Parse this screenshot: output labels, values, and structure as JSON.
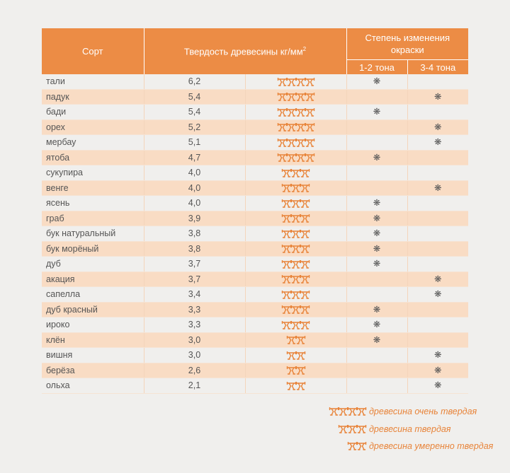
{
  "header": {
    "sort": "Сорт",
    "hardness": "Твердость древесины кг/мм",
    "hardness_sup": "2",
    "color_change": "Степень изменения окраски",
    "tone_1_2": "1-2 тона",
    "tone_3_4": "3-4 тона"
  },
  "star_glyph": "❋",
  "accent_color": "#ec8c45",
  "rows": [
    {
      "name": "тали",
      "hardness": "6,2",
      "icons": 4,
      "tone": "1-2"
    },
    {
      "name": "падук",
      "hardness": "5,4",
      "icons": 4,
      "tone": "3-4"
    },
    {
      "name": "бади",
      "hardness": "5,4",
      "icons": 4,
      "tone": "1-2"
    },
    {
      "name": "орех",
      "hardness": "5,2",
      "icons": 4,
      "tone": "3-4"
    },
    {
      "name": "мербау",
      "hardness": "5,1",
      "icons": 4,
      "tone": "3-4"
    },
    {
      "name": "ятоба",
      "hardness": "4,7",
      "icons": 4,
      "tone": "1-2"
    },
    {
      "name": "сукупира",
      "hardness": "4,0",
      "icons": 3,
      "tone": ""
    },
    {
      "name": "венге",
      "hardness": "4,0",
      "icons": 3,
      "tone": "3-4"
    },
    {
      "name": "ясень",
      "hardness": "4,0",
      "icons": 3,
      "tone": "1-2"
    },
    {
      "name": "граб",
      "hardness": "3,9",
      "icons": 3,
      "tone": "1-2"
    },
    {
      "name": "бук натуральный",
      "hardness": "3,8",
      "icons": 3,
      "tone": "1-2"
    },
    {
      "name": "бук морёный",
      "hardness": "3,8",
      "icons": 3,
      "tone": "1-2"
    },
    {
      "name": "дуб",
      "hardness": "3,7",
      "icons": 3,
      "tone": "1-2"
    },
    {
      "name": "акация",
      "hardness": "3,7",
      "icons": 3,
      "tone": "3-4"
    },
    {
      "name": "сапелла",
      "hardness": "3,4",
      "icons": 3,
      "tone": "3-4"
    },
    {
      "name": "дуб красный",
      "hardness": "3,3",
      "icons": 3,
      "tone": "1-2"
    },
    {
      "name": "ироко",
      "hardness": "3,3",
      "icons": 3,
      "tone": "1-2"
    },
    {
      "name": "клён",
      "hardness": "3,0",
      "icons": 2,
      "tone": "1-2"
    },
    {
      "name": "вишня",
      "hardness": "3,0",
      "icons": 2,
      "tone": "3-4"
    },
    {
      "name": "берёза",
      "hardness": "2,6",
      "icons": 2,
      "tone": "3-4"
    },
    {
      "name": "ольха",
      "hardness": "2,1",
      "icons": 2,
      "tone": "3-4"
    }
  ],
  "legend": [
    {
      "icons": 4,
      "label": "древесина очень твердая"
    },
    {
      "icons": 3,
      "label": "древесина твердая"
    },
    {
      "icons": 2,
      "label": "древесина умеренно твердая"
    }
  ]
}
